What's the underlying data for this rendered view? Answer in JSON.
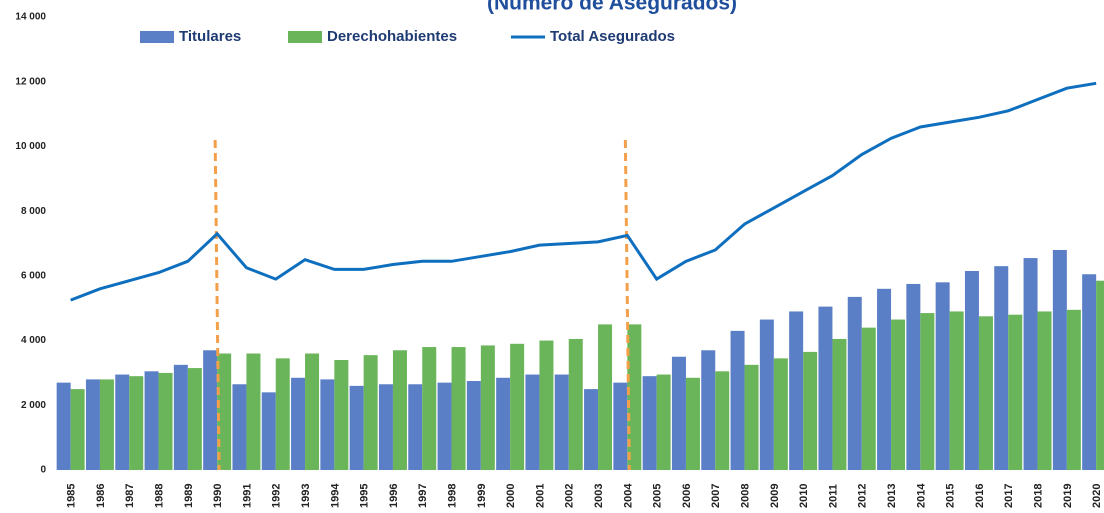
{
  "chart_data": {
    "type": "bar_line",
    "title": "(Número de Asegurados)",
    "categories": [
      "1985",
      "1986",
      "1987",
      "1988",
      "1989",
      "1990",
      "1991",
      "1992",
      "1993",
      "1994",
      "1995",
      "1996",
      "1997",
      "1998",
      "1999",
      "2000",
      "2001",
      "2002",
      "2003",
      "2004",
      "2005",
      "2006",
      "2007",
      "2008",
      "2009",
      "2010",
      "2011",
      "2012",
      "2013",
      "2014",
      "2015",
      "2016",
      "2017",
      "2018",
      "2019",
      "2020"
    ],
    "series": [
      {
        "name": "Titulares",
        "type": "bar",
        "color": "#5b7fc7",
        "values": [
          2700,
          2800,
          2950,
          3050,
          3250,
          3700,
          2650,
          2400,
          2850,
          2800,
          2600,
          2650,
          2650,
          2700,
          2750,
          2850,
          2950,
          2950,
          2500,
          2700,
          2900,
          3500,
          3700,
          4300,
          4650,
          4900,
          5050,
          5350,
          5600,
          5750,
          5800,
          6150,
          6300,
          6550,
          6800,
          6050
        ]
      },
      {
        "name": "Derechohabientes",
        "type": "bar",
        "color": "#6ab55a",
        "values": [
          2500,
          2800,
          2900,
          3000,
          3150,
          3600,
          3600,
          3450,
          3600,
          3400,
          3550,
          3700,
          3800,
          3800,
          3850,
          3900,
          4000,
          4050,
          4500,
          4500,
          2950,
          2850,
          3050,
          3250,
          3450,
          3650,
          4050,
          4400,
          4650,
          4850,
          4900,
          4750,
          4800,
          4900,
          4950,
          5850
        ]
      },
      {
        "name": "Total Asegurados",
        "type": "line",
        "color": "#0f6fbf",
        "values": [
          5250,
          5600,
          5850,
          6100,
          6450,
          7300,
          6250,
          5900,
          6500,
          6200,
          6200,
          6350,
          6450,
          6450,
          6600,
          6750,
          6950,
          7000,
          7050,
          7250,
          5900,
          6450,
          6800,
          7600,
          8100,
          8600,
          9100,
          9750,
          10250,
          10600,
          10750,
          10900,
          11100,
          11450,
          11800,
          11950
        ]
      }
    ],
    "ylim": [
      0,
      14000
    ],
    "yticks": [
      0,
      {
        "value": 2000,
        "label": "2 000"
      },
      {
        "value": 4000,
        "label": "4 000"
      },
      {
        "value": 6000,
        "label": "6 000"
      },
      {
        "value": 8000,
        "label": "8 000"
      },
      {
        "value": 10000,
        "label": "10 000"
      },
      {
        "value": 12000,
        "label": "12 000"
      },
      {
        "value": 14000,
        "label": "14 000"
      }
    ],
    "markers": {
      "color": "#f4a04a",
      "categories": [
        "1990",
        "2004"
      ]
    }
  }
}
